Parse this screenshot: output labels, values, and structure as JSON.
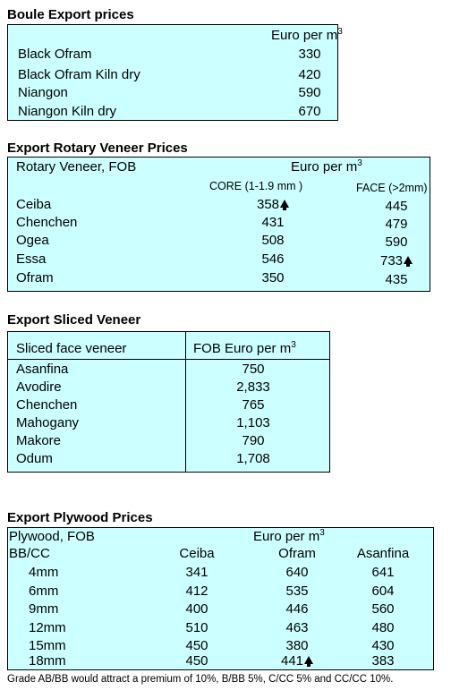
{
  "boule": {
    "title": "Boule Export prices",
    "unit_label": "Euro per m",
    "unit_sup": "3",
    "rows": [
      {
        "name": "Black Ofram",
        "value": "330"
      },
      {
        "name": "Black Ofram  Kiln dry",
        "value": "420"
      },
      {
        "name": "Niangon",
        "value": "590"
      },
      {
        "name": "Niangon Kiln dry",
        "value": "670"
      }
    ]
  },
  "rotary": {
    "title": "Export Rotary Veneer Prices",
    "header_left": "Rotary Veneer,  FOB",
    "unit_label": "Euro  per m",
    "unit_sup": "3",
    "col_core": "CORE (1-1.9 mm )",
    "col_face": "FACE (>2mm)",
    "rows": [
      {
        "name": "Ceiba",
        "core": "358",
        "face": "445",
        "core_up": true,
        "face_up": false
      },
      {
        "name": "Chenchen",
        "core": "431",
        "face": "479",
        "core_up": false,
        "face_up": false
      },
      {
        "name": "Ogea",
        "core": "508",
        "face": "590",
        "core_up": false,
        "face_up": false
      },
      {
        "name": "Essa",
        "core": "546",
        "face": "733",
        "core_up": false,
        "face_up": true
      },
      {
        "name": "Ofram",
        "core": "350",
        "face": "435",
        "core_up": false,
        "face_up": false
      }
    ]
  },
  "sliced": {
    "title": "Export Sliced Veneer",
    "header_left": "Sliced face veneer",
    "header_right": "FOB Euro per m",
    "unit_sup": "3",
    "rows": [
      {
        "name": "Asanfina",
        "value": "750"
      },
      {
        "name": "Avodire",
        "value": "2,833"
      },
      {
        "name": "Chenchen",
        "value": "765"
      },
      {
        "name": "Mahogany",
        "value": "1,103"
      },
      {
        "name": "Makore",
        "value": "790"
      },
      {
        "name": "Odum",
        "value": "1,708"
      }
    ]
  },
  "plywood": {
    "title": "Export Plywood Prices",
    "header_left": "Plywood, FOB",
    "unit_label": "Euro per m",
    "unit_sup": "3",
    "grade_label": "BB/CC",
    "columns": [
      "Ceiba",
      "Ofram",
      "Asanfina"
    ],
    "rows": [
      {
        "size": "4mm",
        "ceiba": "341",
        "ofram": "640",
        "asanfina": "641",
        "ofram_up": false
      },
      {
        "size": "6mm",
        "ceiba": "412",
        "ofram": "535",
        "asanfina": "604",
        "ofram_up": false
      },
      {
        "size": "9mm",
        "ceiba": "400",
        "ofram": "446",
        "asanfina": "560",
        "ofram_up": false
      },
      {
        "size": "12mm",
        "ceiba": "510",
        "ofram": "463",
        "asanfina": "480",
        "ofram_up": false
      },
      {
        "size": "15mm",
        "ceiba": "450",
        "ofram": "380",
        "asanfina": "430",
        "ofram_up": false
      },
      {
        "size": "18mm",
        "ceiba": "450",
        "ofram": "441",
        "asanfina": "383",
        "ofram_up": true
      }
    ],
    "footnote": "Grade AB/BB would attract a premium of 10%, B/BB 5%, C/CC 5% and CC/CC 10%."
  },
  "icons": {
    "up_arrow": "up-arrow-icon"
  }
}
